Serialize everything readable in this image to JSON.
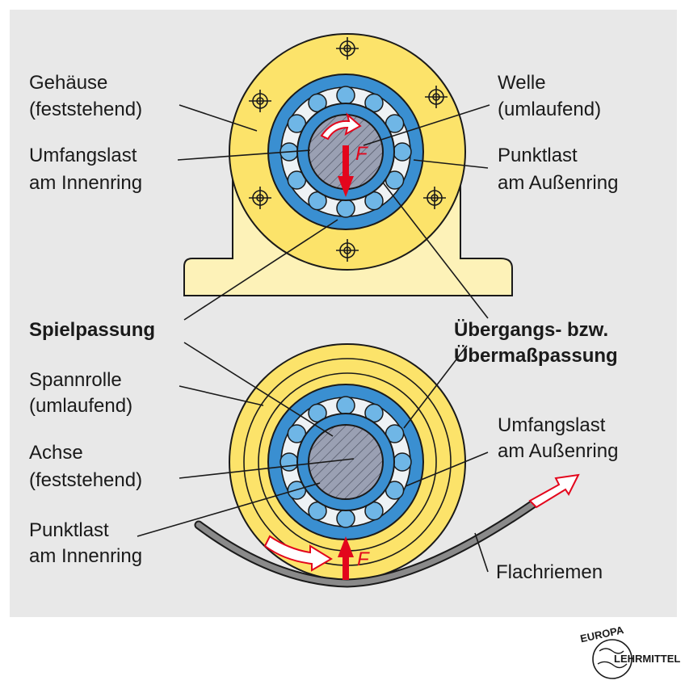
{
  "labels": {
    "gehaeuse_1": "Gehäuse",
    "gehaeuse_2": "(feststehend)",
    "welle_1": "Welle",
    "welle_2": "(umlaufend)",
    "umfangslast_innen_1": "Umfangslast",
    "umfangslast_innen_2": "am Innenring",
    "punktlast_aussen_1": "Punktlast",
    "punktlast_aussen_2": "am Außenring",
    "spielpassung": "Spielpassung",
    "uebergang_1": "Übergangs- bzw.",
    "uebergang_2": "Übermaßpassung",
    "spannrolle_1": "Spannrolle",
    "spannrolle_2": "(umlaufend)",
    "umfangslast_aussen_1": "Umfangslast",
    "umfangslast_aussen_2": "am Außenring",
    "achse_1": "Achse",
    "achse_2": "(feststehend)",
    "punktlast_innen_1": "Punktlast",
    "punktlast_innen_2": "am Innenring",
    "flachriemen": "Flachriemen",
    "force_top": "F",
    "force_bottom": "F"
  },
  "logo": {
    "top_text": "EUROPA",
    "side_text": "LEHRMITTEL"
  },
  "colors": {
    "panel": "#e8e8e8",
    "housing_yellow": "#fce36a",
    "housing_base": "#fdf2b8",
    "ring_blue": "#3a8fd1",
    "ball_blue": "#6fb6e6",
    "shaft_grey": "#9aa0b3",
    "force_red": "#e3061c",
    "belt_grey": "#8a8a8a"
  }
}
